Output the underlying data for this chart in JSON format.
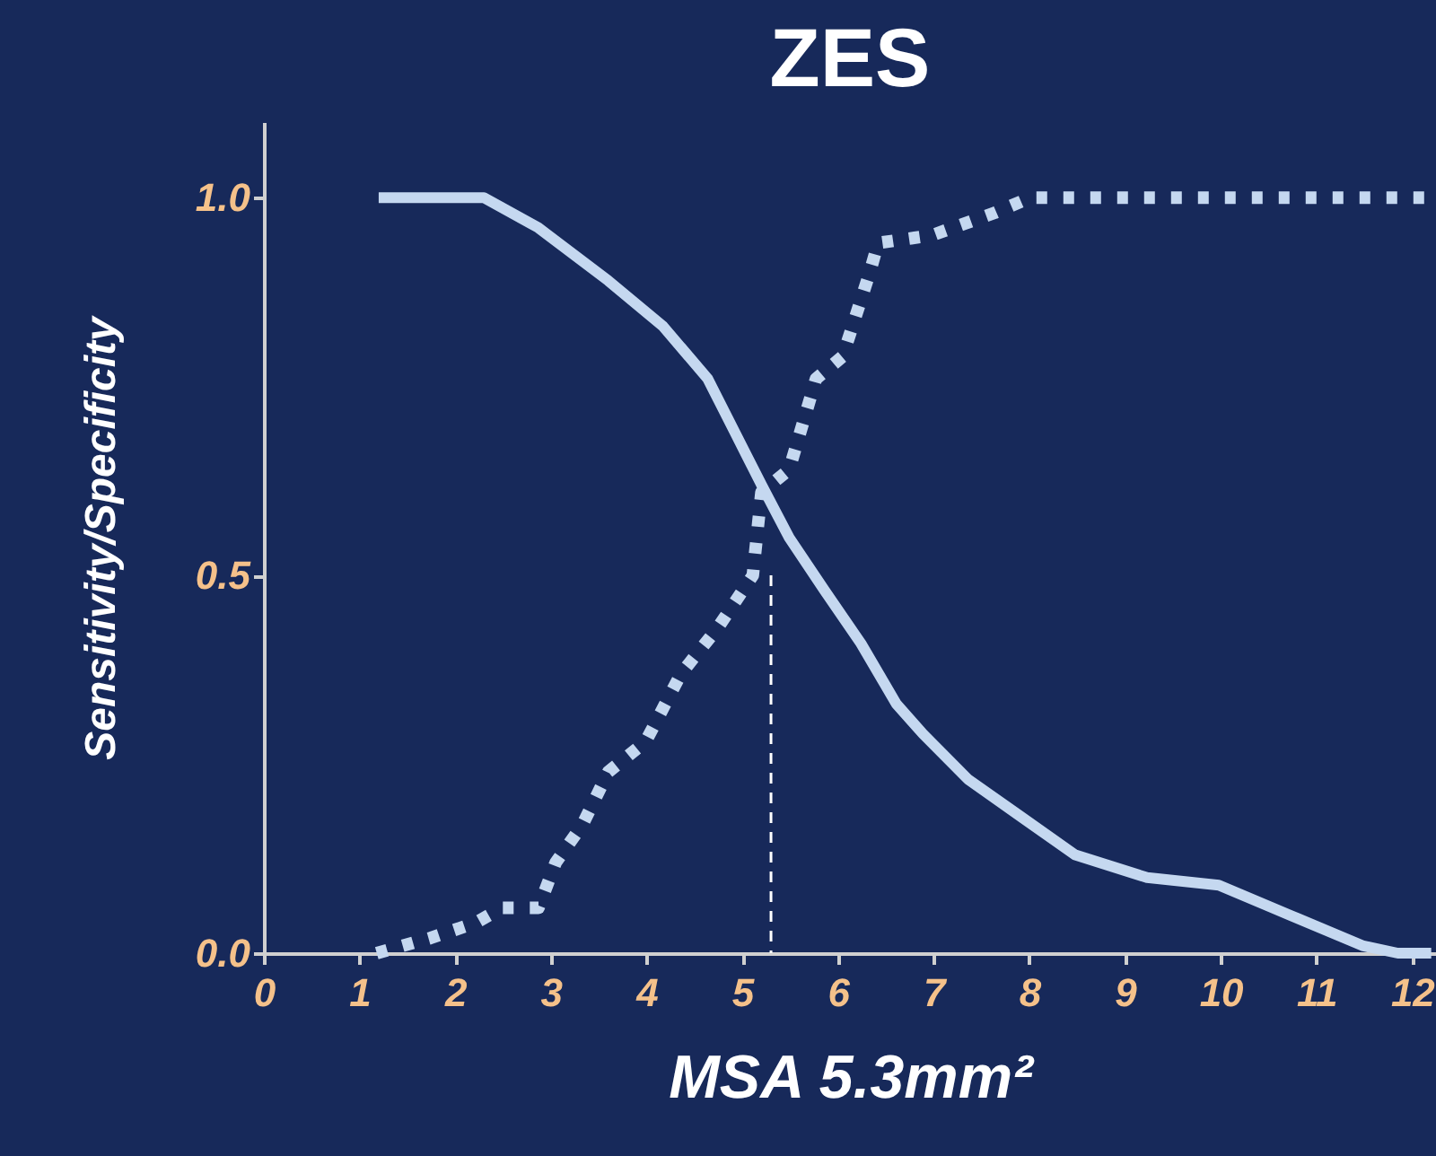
{
  "chart_data": {
    "type": "line",
    "title": "ZES",
    "xlabel": "MSA 5.3mm²",
    "ylabel": "Sensitivity/Specificity",
    "xlim": [
      0,
      12.25
    ],
    "xticks": [
      0,
      1,
      2,
      3,
      4,
      5,
      6,
      7,
      8,
      9,
      10,
      11,
      12
    ],
    "ylim": [
      0,
      1.1
    ],
    "yticks": [
      {
        "value": 0,
        "label": "0.0"
      },
      {
        "value": 0.5,
        "label": "0.5"
      },
      {
        "value": 1,
        "label": "1.0"
      }
    ],
    "grid": false,
    "series": [
      {
        "color": "#c5d8f0",
        "line_style": "solid",
        "x": [
          1.2,
          2.3,
          2.87,
          3.6,
          4.17,
          4.64,
          4.92,
          5.2,
          5.49,
          5.86,
          6.24,
          6.61,
          6.89,
          7.36,
          7.92,
          8.48,
          9.23,
          9.98,
          10.73,
          11.48,
          11.85,
          12.2
        ],
        "values": [
          1.0,
          1.0,
          0.96,
          0.89,
          0.83,
          0.76,
          0.69,
          0.62,
          0.55,
          0.48,
          0.41,
          0.33,
          0.29,
          0.23,
          0.18,
          0.13,
          0.1,
          0.09,
          0.05,
          0.01,
          0.0,
          0.0
        ]
      },
      {
        "color": "#c5d8f0",
        "line_style": "dotted",
        "x": [
          1.18,
          1.74,
          2.21,
          2.49,
          2.87,
          3.05,
          3.33,
          3.6,
          3.99,
          4.36,
          4.74,
          5.11,
          5.2,
          5.49,
          5.77,
          6.05,
          6.33,
          6.42,
          6.98,
          7.64,
          8.01,
          12.2
        ],
        "values": [
          0.0,
          0.02,
          0.04,
          0.06,
          0.06,
          0.12,
          0.17,
          0.24,
          0.28,
          0.37,
          0.43,
          0.5,
          0.61,
          0.64,
          0.76,
          0.79,
          0.9,
          0.94,
          0.95,
          0.98,
          1.0,
          1.0
        ]
      },
      {
        "color": "#ffffff",
        "line_style": "dashed",
        "x": [
          5.3,
          5.3
        ],
        "values": [
          0.5,
          0.0
        ]
      }
    ]
  }
}
